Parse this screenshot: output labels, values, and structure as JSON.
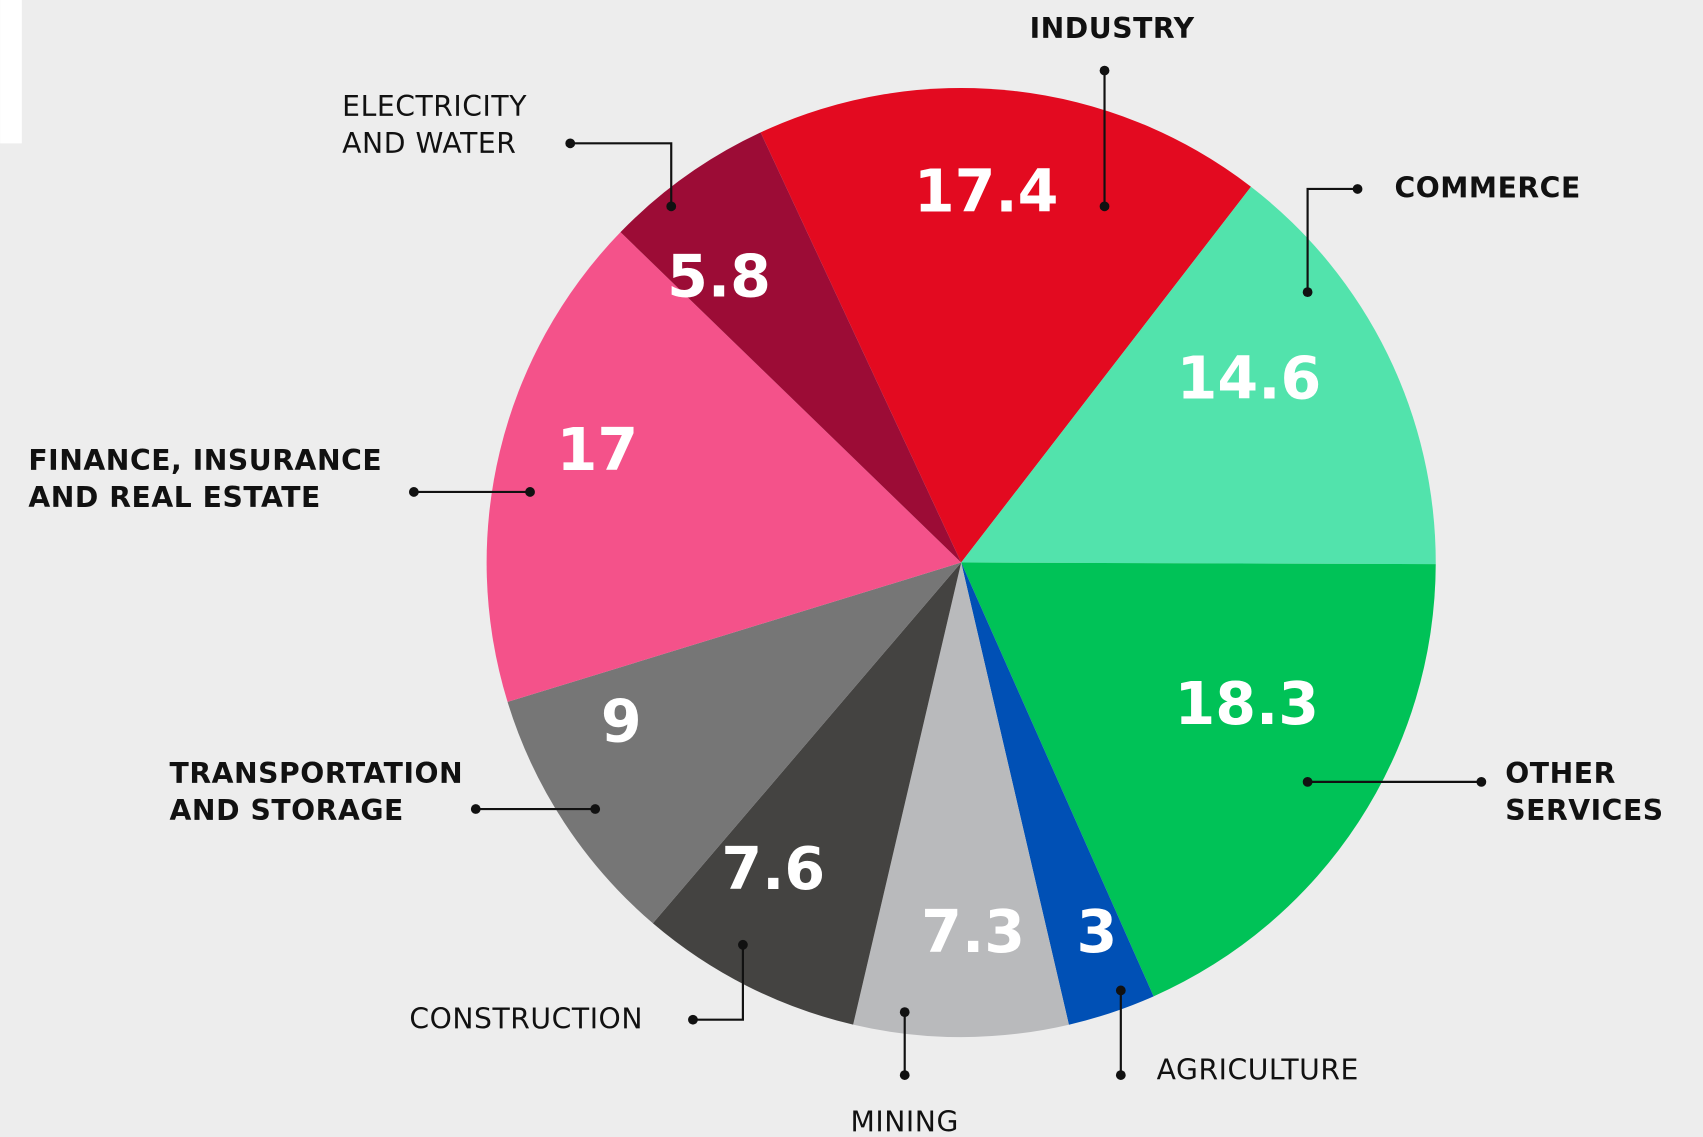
{
  "chart_data": {
    "type": "pie",
    "categories": [
      "INDUSTRY",
      "COMMERCE",
      "OTHER SERVICES",
      "AGRICULTURE",
      "MINING",
      "CONSTRUCTION",
      "TRANSPORTATION AND STORAGE",
      "FINANCE, INSURANCE AND REAL ESTATE",
      "ELECTRICITY AND WATER"
    ],
    "values": [
      17.4,
      14.6,
      18.3,
      3,
      7.3,
      7.6,
      9,
      17,
      5.8
    ],
    "colors": [
      "#e30a20",
      "#52e3ac",
      "#00c257",
      "#0050b5",
      "#b9babc",
      "#444341",
      "#767676",
      "#f4528a",
      "#9c0c36"
    ]
  }
}
